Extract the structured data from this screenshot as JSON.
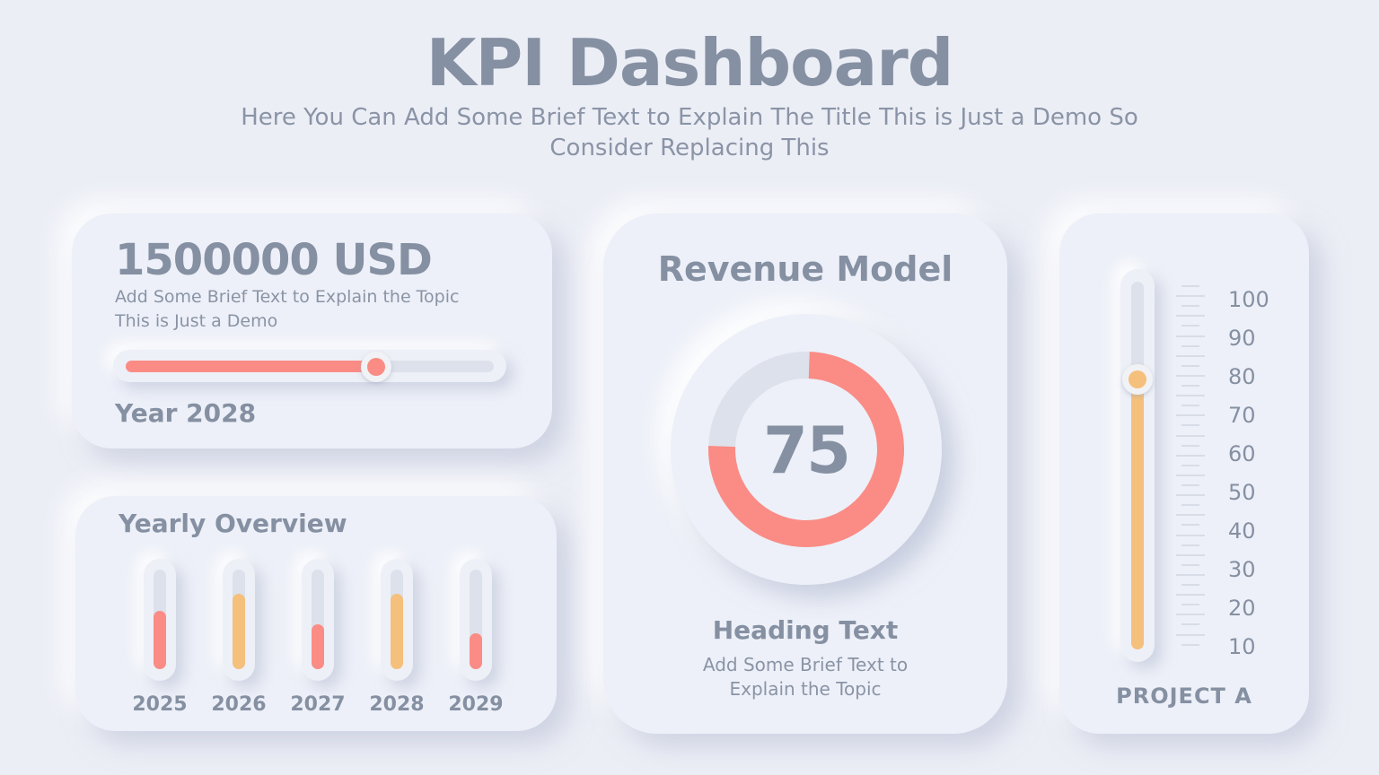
{
  "header": {
    "title": "KPI Dashboard",
    "subtitle": "Here You Can Add Some Brief Text to Explain The Title This is Just a Demo So Consider Replacing This"
  },
  "colors": {
    "background": "#eceef6",
    "text": "#8590a2",
    "track": "#dde1eb",
    "coral": "#fa8c85",
    "amber": "#f5c07b"
  },
  "kpi_card": {
    "value": "1500000 USD",
    "description": "Add Some Brief Text to Explain the Topic This is Just a Demo",
    "slider_percent": 68,
    "year_label": "Year 2028"
  },
  "yearly_card": {
    "title": "Yearly Overview",
    "bars": [
      {
        "year": "2025",
        "percent": 59,
        "color": "#fa8c85"
      },
      {
        "year": "2026",
        "percent": 76,
        "color": "#f5c07b"
      },
      {
        "year": "2027",
        "percent": 45,
        "color": "#fa8c85"
      },
      {
        "year": "2028",
        "percent": 76,
        "color": "#f5c07b"
      },
      {
        "year": "2029",
        "percent": 36,
        "color": "#fa8c85"
      }
    ]
  },
  "revenue_card": {
    "title": "Revenue Model",
    "value": "75",
    "percent": 75,
    "heading": "Heading Text",
    "description": "Add Some Brief Text to Explain the Topic"
  },
  "project_card": {
    "label": "PROJECT A",
    "value": 76,
    "scale": [
      "100",
      "90",
      "80",
      "70",
      "60",
      "50",
      "40",
      "30",
      "20",
      "10"
    ],
    "scale_min": 10,
    "scale_max": 100
  }
}
